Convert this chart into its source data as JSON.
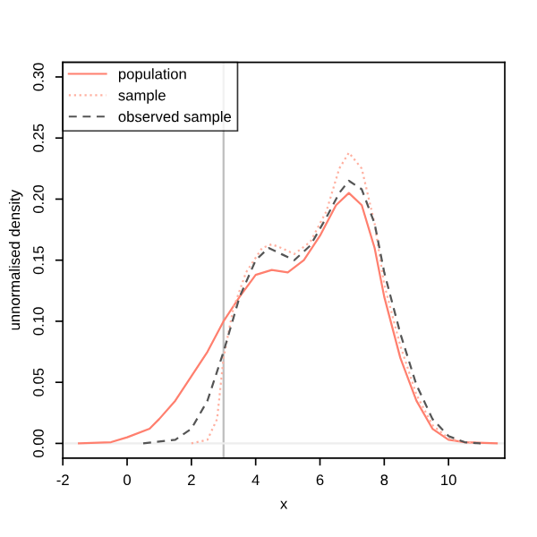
{
  "chart_data": {
    "type": "line",
    "xlabel": "x",
    "ylabel": "unnormalised density",
    "legend": "top left",
    "grid": false,
    "xlim": [
      -2,
      11.75
    ],
    "ylim": [
      -0.012,
      0.312
    ],
    "xticks": [
      -2,
      0,
      2,
      4,
      6,
      8,
      10
    ],
    "yticks": [
      {
        "value": 0,
        "label": "0.00"
      },
      {
        "value": 0.05,
        "label": "0.05"
      },
      {
        "value": 0.1,
        "label": "0.10"
      },
      {
        "value": 0.15,
        "label": "0.15"
      },
      {
        "value": 0.2,
        "label": "0.20"
      },
      {
        "value": 0.25,
        "label": "0.25"
      },
      {
        "value": 0.3,
        "label": "0.30"
      }
    ],
    "ref_lines": [
      {
        "axis": "x",
        "value": 3,
        "label": null,
        "color": "#bebebe"
      },
      {
        "axis": "y",
        "value": 0,
        "label": null,
        "color": "#eeeeee"
      }
    ],
    "series": [
      {
        "name": "population",
        "color": "#ff7f6e",
        "line_style": "solid",
        "x": [
          -1.5,
          -0.5,
          0,
          0.7,
          1,
          1.5,
          2,
          2.5,
          3,
          3.5,
          4,
          4.5,
          5,
          5.5,
          6,
          6.5,
          6.9,
          7.3,
          7.7,
          8,
          8.5,
          9,
          9.5,
          10,
          10.5,
          11.5
        ],
        "values": [
          0,
          0.001,
          0.005,
          0.012,
          0.02,
          0.035,
          0.055,
          0.075,
          0.1,
          0.12,
          0.138,
          0.142,
          0.14,
          0.15,
          0.17,
          0.195,
          0.205,
          0.195,
          0.16,
          0.12,
          0.07,
          0.035,
          0.012,
          0.003,
          0.001,
          0
        ]
      },
      {
        "name": "sample",
        "color": "#ffb0a0",
        "line_style": "dotted",
        "x": [
          2,
          2.5,
          2.8,
          3,
          3.3,
          3.7,
          4.2,
          4.5,
          4.8,
          5.2,
          5.7,
          6.2,
          6.6,
          6.9,
          7.3,
          7.7,
          8,
          8.5,
          9,
          9.5,
          10,
          10.5,
          11
        ],
        "values": [
          0,
          0.003,
          0.02,
          0.07,
          0.11,
          0.14,
          0.16,
          0.163,
          0.16,
          0.155,
          0.165,
          0.19,
          0.225,
          0.238,
          0.225,
          0.18,
          0.13,
          0.08,
          0.04,
          0.015,
          0.004,
          0.001,
          0
        ]
      },
      {
        "name": "observed sample",
        "color": "#555555",
        "line_style": "dashed",
        "x": [
          0.5,
          1.5,
          2,
          2.5,
          3,
          3.5,
          4,
          4.4,
          4.8,
          5.2,
          5.7,
          6.2,
          6.6,
          6.9,
          7.3,
          7.7,
          8,
          8.5,
          9,
          9.5,
          10,
          10.5,
          11
        ],
        "values": [
          0,
          0.003,
          0.012,
          0.035,
          0.075,
          0.12,
          0.15,
          0.16,
          0.155,
          0.15,
          0.162,
          0.185,
          0.205,
          0.215,
          0.208,
          0.18,
          0.14,
          0.09,
          0.048,
          0.02,
          0.006,
          0.001,
          0
        ]
      }
    ]
  }
}
